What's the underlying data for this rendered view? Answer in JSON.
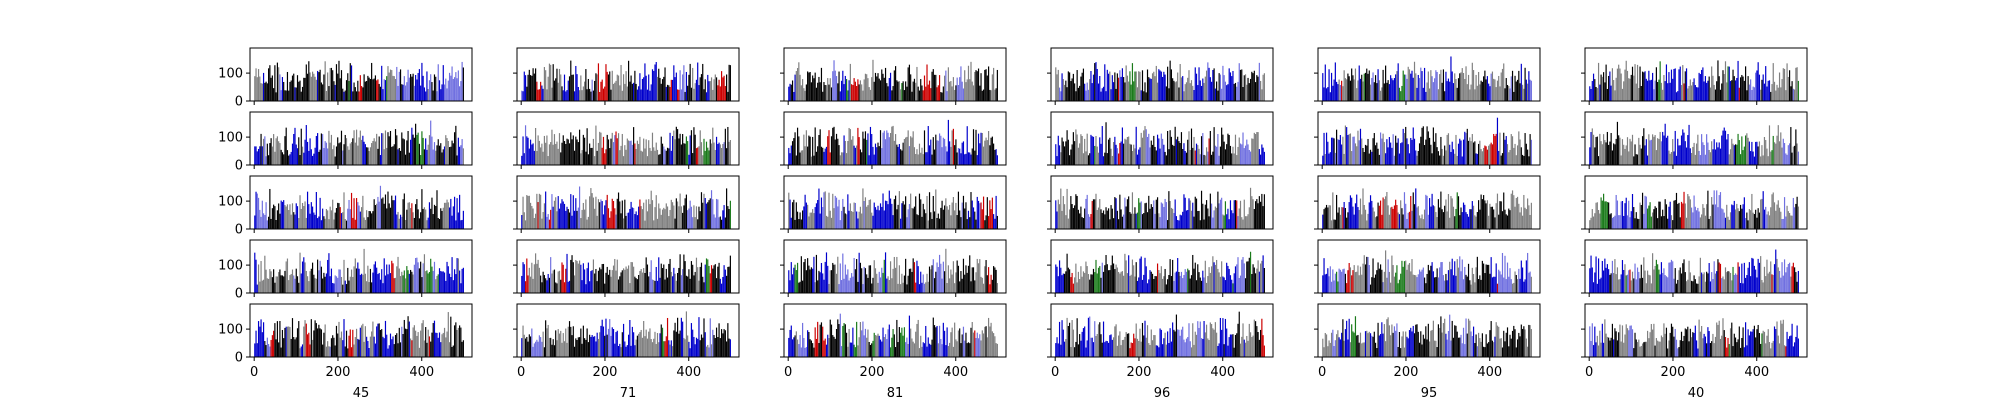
{
  "chart_data": {
    "type": "bar",
    "description_grid": {
      "rows": 5,
      "cols": 6
    },
    "shared_axes": {
      "xlim": [
        -10,
        520
      ],
      "ylim": [
        0,
        190
      ],
      "xticks": [
        0,
        200,
        400
      ],
      "xtick_labels": [
        "0",
        "200",
        "400"
      ],
      "yticks": [
        0,
        100
      ],
      "ytick_labels": [
        "0",
        "100"
      ],
      "x_ticks_shown_on": "bottom row",
      "y_ticks_shown_on": "left column"
    },
    "column_labels": [
      "45",
      "71",
      "81",
      "96",
      "95",
      "40"
    ],
    "bars_per_panel": 167,
    "bar_x_step": 3,
    "value_range_approx": [
      30,
      150
    ],
    "typical_value": 85,
    "bar_colors": [
      "#000000",
      "#808080",
      "#0000cc",
      "#7070e0",
      "#cc0000",
      "#1a7a1a"
    ],
    "color_weights": [
      0.34,
      0.3,
      0.2,
      0.1,
      0.04,
      0.02
    ],
    "grid": false,
    "legend": "none"
  }
}
